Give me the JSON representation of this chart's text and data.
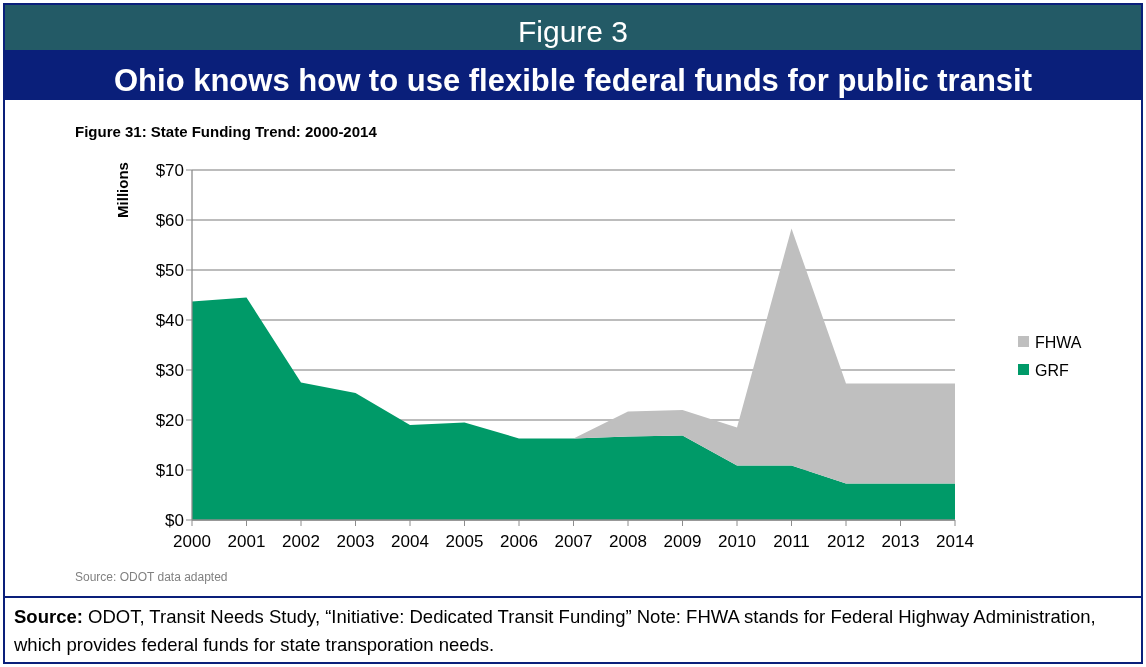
{
  "chart_data": {
    "type": "area",
    "stacked": true,
    "title": "Figure 3",
    "subtitle": "Ohio knows how to use flexible federal funds for public transit",
    "ylabel": "Millions",
    "categories": [
      "2000",
      "2001",
      "2002",
      "2003",
      "2004",
      "2005",
      "2006",
      "2007",
      "2008",
      "2009",
      "2010",
      "2011",
      "2012",
      "2013",
      "2014"
    ],
    "series": [
      {
        "name": "GRF",
        "color": "#009a68",
        "values": [
          43.7,
          44.5,
          27.5,
          25.4,
          19,
          19.5,
          16.3,
          16.3,
          16.7,
          16.9,
          10.9,
          10.9,
          7.3,
          7.3,
          7.3
        ]
      },
      {
        "name": "FHWA",
        "color": "#bfbfbf",
        "values": [
          0,
          0,
          0,
          0,
          0,
          0,
          0,
          0,
          5,
          5.1,
          7.6,
          47.4,
          20,
          20,
          20
        ]
      }
    ],
    "ylim": [
      0,
      70
    ],
    "yticks": [
      {
        "value": 0,
        "label": "$0"
      },
      {
        "value": 10,
        "label": "$10"
      },
      {
        "value": 20,
        "label": "$20"
      },
      {
        "value": 30,
        "label": "$30"
      },
      {
        "value": 40,
        "label": "$40"
      },
      {
        "value": 50,
        "label": "$50"
      },
      {
        "value": 60,
        "label": "$60"
      },
      {
        "value": 70,
        "label": "$70"
      }
    ],
    "grid": "y",
    "legend": "right",
    "annotations": [
      "Figure 31: State Funding Trend: 2000-2014",
      "Source: ODOT data adapted",
      "Source: ODOT, Transit Needs Study, “Initiative: Dedicated Transit Funding”  Note: FHWA stands for Federal Highway Administration, which provides federal funds for state transporation needs."
    ]
  }
}
